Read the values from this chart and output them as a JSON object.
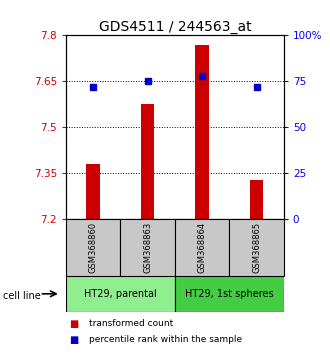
{
  "title": "GDS4511 / 244563_at",
  "samples": [
    "GSM368860",
    "GSM368863",
    "GSM368864",
    "GSM368865"
  ],
  "transformed_count": [
    7.38,
    7.575,
    7.77,
    7.33
  ],
  "percentile_rank": [
    72,
    75,
    78,
    72
  ],
  "ymin": 7.2,
  "ymax": 7.8,
  "yticks": [
    7.2,
    7.35,
    7.5,
    7.65,
    7.8
  ],
  "ytick_labels": [
    "7.2",
    "7.35",
    "7.5",
    "7.65",
    "7.8"
  ],
  "y2min": 0,
  "y2max": 100,
  "y2ticks": [
    0,
    25,
    50,
    75,
    100
  ],
  "y2tick_labels": [
    "0",
    "25",
    "50",
    "75",
    "100%"
  ],
  "dotted_lines": [
    7.35,
    7.5,
    7.65
  ],
  "groups": [
    {
      "label": "HT29, parental",
      "samples": [
        "GSM368860",
        "GSM368863"
      ],
      "color": "#90ee90"
    },
    {
      "label": "HT29, 1st spheres",
      "samples": [
        "GSM368864",
        "GSM368865"
      ],
      "color": "#44cc44"
    }
  ],
  "bar_color": "#cc0000",
  "dot_color": "#0000cc",
  "bar_width": 0.25,
  "gsm_box_color": "#c8c8c8",
  "cell_line_label": "cell line",
  "legend_items": [
    {
      "label": "transformed count",
      "color": "#cc0000"
    },
    {
      "label": "percentile rank within the sample",
      "color": "#0000cc"
    }
  ],
  "background_color": "#ffffff",
  "plot_bg_color": "#ffffff",
  "title_fontsize": 10,
  "tick_fontsize": 7.5,
  "label_fontsize": 7
}
